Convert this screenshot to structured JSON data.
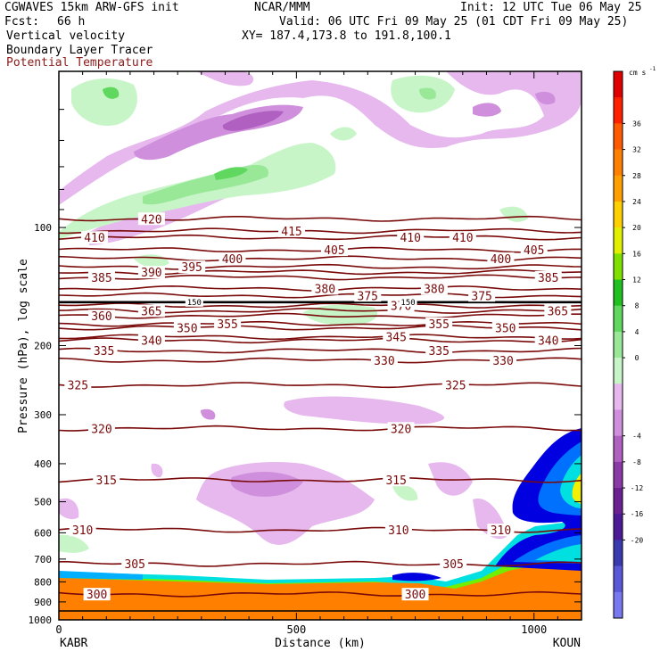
{
  "header": {
    "model": "CGWAVES 15km ARW-GFS init",
    "org": "NCAR/MMM",
    "init": "Init: 12 UTC Tue 06 May 25",
    "fcst_label": "Fcst:",
    "fcst_value": "66 h",
    "valid": "Valid: 06 UTC Fri 09 May 25 (01 CDT Fri 09 May 25)",
    "field1": "Vertical velocity",
    "xy": "XY= 187.4,173.8 to 191.8,100.1",
    "field2": "Boundary Layer Tracer",
    "field3": "Potential Temperature"
  },
  "colors": {
    "theta": "#7a0a0a",
    "frame": "#000000",
    "downward": [
      "#e6b8ee",
      "#cf8fdc",
      "#b060c0",
      "#8a3aa6",
      "#6a2090",
      "#4c1a96",
      "#3a3ab0",
      "#5858d8",
      "#7878f0"
    ],
    "upward": [
      "#c8f5c8",
      "#98e898",
      "#60d860",
      "#20c020",
      "#80e000",
      "#e0f000",
      "#ffd000",
      "#ffa000",
      "#ff8000",
      "#ff5a00",
      "#ff2000",
      "#e00000"
    ],
    "tracer": [
      "#0000e0",
      "#0070ff",
      "#00b0ff",
      "#00e0e0",
      "#00e070",
      "#70f000",
      "#f0f000",
      "#ffa000",
      "#ff8000"
    ]
  },
  "chart_data": {
    "type": "heatmap",
    "ylabel": "Pressure (hPa), log scale",
    "xlabel": "Distance (km)",
    "x_ticks": [
      {
        "label": "0",
        "value": 0
      },
      {
        "label": "500",
        "value": 500
      },
      {
        "label": "1000",
        "value": 1000
      }
    ],
    "y_ticks": [
      {
        "label": "100",
        "value": 100
      },
      {
        "label": "200",
        "value": 200
      },
      {
        "label": "300",
        "value": 300
      },
      {
        "label": "400",
        "value": 400
      },
      {
        "label": "500",
        "value": 500
      },
      {
        "label": "600",
        "value": 600
      },
      {
        "label": "700",
        "value": 700
      },
      {
        "label": "800",
        "value": 800
      },
      {
        "label": "900",
        "value": 900
      },
      {
        "label": "1000",
        "value": 1000
      }
    ],
    "xlim": [
      0,
      1100
    ],
    "ylim_hpa": [
      1000,
      40
    ],
    "y_scale": "log",
    "left_endpoint": "KABR",
    "right_endpoint": "KOUN",
    "colorbar": {
      "units": "cm s",
      "units_exp": "-1",
      "labels": [
        "36",
        "32",
        "28",
        "24",
        "20",
        "16",
        "12",
        "8",
        "4",
        "0",
        "-4",
        "-8",
        "-12",
        "-16",
        "-20"
      ]
    },
    "theta_contours": [
      {
        "value": 420,
        "p": 95,
        "labels": [
          {
            "text": "420",
            "x": 195
          }
        ]
      },
      {
        "value": 415,
        "p": 102,
        "labels": [
          {
            "text": "415",
            "x": 490
          }
        ]
      },
      {
        "value": 410,
        "p": 106,
        "labels": [
          {
            "text": "410",
            "x": 75
          },
          {
            "text": "410",
            "x": 740
          },
          {
            "text": "410",
            "x": 850
          }
        ]
      },
      {
        "value": 405,
        "p": 114,
        "labels": [
          {
            "text": "405",
            "x": 580
          },
          {
            "text": "405",
            "x": 1000
          }
        ]
      },
      {
        "value": 400,
        "p": 120,
        "labels": [
          {
            "text": "400",
            "x": 365
          },
          {
            "text": "400",
            "x": 930
          }
        ]
      },
      {
        "value": 395,
        "p": 126,
        "labels": [
          {
            "text": "395",
            "x": 280
          }
        ]
      },
      {
        "value": 390,
        "p": 130,
        "labels": [
          {
            "text": "390",
            "x": 195
          }
        ]
      },
      {
        "value": 385,
        "p": 134,
        "labels": [
          {
            "text": "385",
            "x": 90
          },
          {
            "text": "385",
            "x": 1030
          }
        ]
      },
      {
        "value": 380,
        "p": 143,
        "labels": [
          {
            "text": "380",
            "x": 560
          },
          {
            "text": "380",
            "x": 790
          }
        ]
      },
      {
        "value": 375,
        "p": 149,
        "labels": [
          {
            "text": "375",
            "x": 650
          },
          {
            "text": "375",
            "x": 890
          }
        ]
      },
      {
        "value": 370,
        "p": 158,
        "labels": [
          {
            "text": "370",
            "x": 720
          }
        ]
      },
      {
        "value": 365,
        "p": 163,
        "labels": [
          {
            "text": "365",
            "x": 195
          },
          {
            "text": "365",
            "x": 1050
          }
        ]
      },
      {
        "value": 360,
        "p": 168,
        "labels": [
          {
            "text": "360",
            "x": 90
          }
        ]
      },
      {
        "value": 355,
        "p": 176,
        "labels": [
          {
            "text": "355",
            "x": 355
          },
          {
            "text": "355",
            "x": 800
          }
        ]
      },
      {
        "value": 350,
        "p": 180,
        "labels": [
          {
            "text": "350",
            "x": 270
          },
          {
            "text": "350",
            "x": 940
          }
        ]
      },
      {
        "value": 345,
        "p": 190,
        "labels": [
          {
            "text": "345",
            "x": 710
          }
        ]
      },
      {
        "value": 340,
        "p": 194,
        "labels": [
          {
            "text": "340",
            "x": 195
          },
          {
            "text": "340",
            "x": 1030
          }
        ]
      },
      {
        "value": 335,
        "p": 206,
        "labels": [
          {
            "text": "335",
            "x": 95
          },
          {
            "text": "335",
            "x": 800
          }
        ]
      },
      {
        "value": 330,
        "p": 218,
        "labels": [
          {
            "text": "330",
            "x": 685
          },
          {
            "text": "330",
            "x": 935
          }
        ]
      },
      {
        "value": 325,
        "p": 252,
        "labels": [
          {
            "text": "325",
            "x": 40
          },
          {
            "text": "325",
            "x": 835
          }
        ]
      },
      {
        "value": 320,
        "p": 325,
        "labels": [
          {
            "text": "320",
            "x": 90
          },
          {
            "text": "320",
            "x": 720
          }
        ]
      },
      {
        "value": 315,
        "p": 440,
        "labels": [
          {
            "text": "315",
            "x": 100
          },
          {
            "text": "315",
            "x": 710
          }
        ]
      },
      {
        "value": 310,
        "p": 590,
        "labels": [
          {
            "text": "310",
            "x": 50
          },
          {
            "text": "310",
            "x": 715
          },
          {
            "text": "310",
            "x": 930
          }
        ]
      },
      {
        "value": 305,
        "p": 720,
        "labels": [
          {
            "text": "305",
            "x": 160
          },
          {
            "text": "305",
            "x": 830
          }
        ]
      },
      {
        "value": 300,
        "p": 860,
        "labels": [
          {
            "text": "300",
            "x": 80
          },
          {
            "text": "300",
            "x": 750
          }
        ]
      }
    ],
    "tropopause_labels": [
      {
        "text": "150",
        "x": 285
      },
      {
        "text": "150",
        "x": 735
      }
    ]
  }
}
